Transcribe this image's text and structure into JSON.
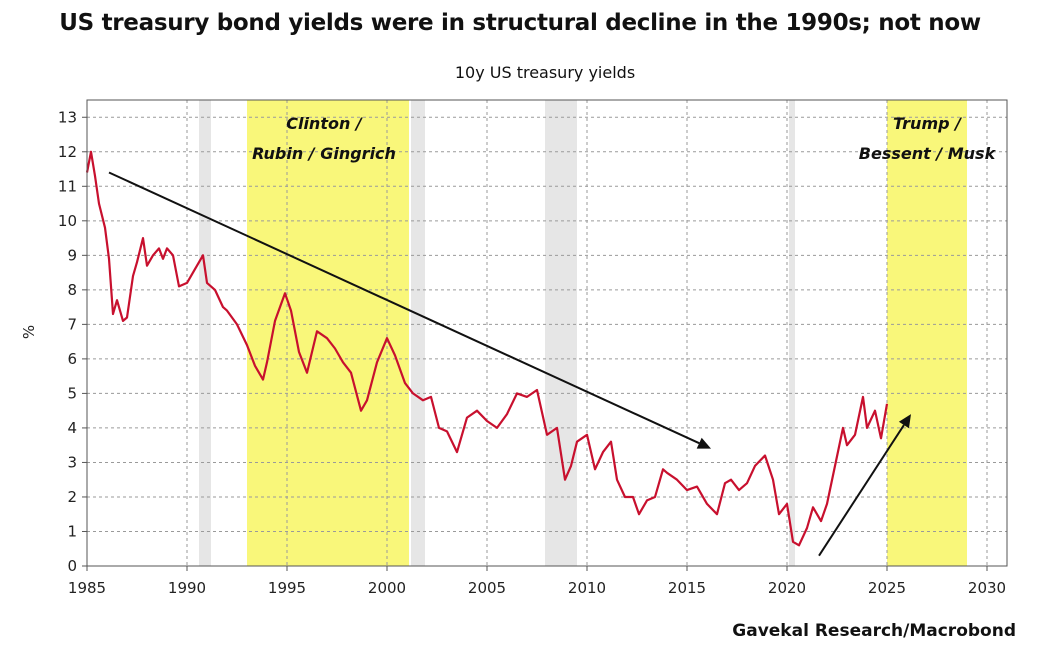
{
  "header": {
    "title": "US treasury bond yields were in structural decline in the 1990s; not now",
    "subtitle": "10y US treasury yields",
    "source": "Gavekal Research/Macrobond"
  },
  "colors": {
    "series": "#c8102e",
    "highlight": "#f9f77a",
    "recession": "#e6e6e6",
    "grid": "#9a9a9a",
    "arrow": "#111111"
  },
  "chart_data": {
    "type": "line",
    "ylabel": "%",
    "xlim": [
      1985,
      2031
    ],
    "ylim": [
      0,
      13.5
    ],
    "x_ticks": [
      1985,
      1990,
      1995,
      2000,
      2005,
      2010,
      2015,
      2020,
      2025,
      2030
    ],
    "y_ticks": [
      0,
      1,
      2,
      3,
      4,
      5,
      6,
      7,
      8,
      9,
      10,
      11,
      12,
      13
    ],
    "grid": true,
    "series": [
      {
        "x": [
          1985.0,
          1985.2,
          1985.4,
          1985.6,
          1985.9,
          1986.1,
          1986.3,
          1986.5,
          1986.8,
          1987.0,
          1987.3,
          1987.5,
          1987.8,
          1988.0,
          1988.3,
          1988.6,
          1988.8,
          1989.0,
          1989.3,
          1989.6,
          1990.0,
          1990.4,
          1990.8,
          1991.0,
          1991.4,
          1991.8,
          1992.0,
          1992.5,
          1993.0,
          1993.4,
          1993.8,
          1994.0,
          1994.4,
          1994.9,
          1995.2,
          1995.6,
          1996.0,
          1996.5,
          1997.0,
          1997.4,
          1997.8,
          1998.2,
          1998.7,
          1999.0,
          1999.5,
          2000.0,
          2000.4,
          2000.9,
          2001.3,
          2001.8,
          2002.2,
          2002.6,
          2003.0,
          2003.5,
          2004.0,
          2004.5,
          2005.0,
          2005.5,
          2006.0,
          2006.5,
          2007.0,
          2007.5,
          2008.0,
          2008.5,
          2008.9,
          2009.2,
          2009.5,
          2010.0,
          2010.4,
          2010.8,
          2011.2,
          2011.5,
          2011.9,
          2012.3,
          2012.6,
          2013.0,
          2013.4,
          2013.8,
          2014.0,
          2014.5,
          2015.0,
          2015.5,
          2016.0,
          2016.5,
          2016.9,
          2017.2,
          2017.6,
          2018.0,
          2018.4,
          2018.9,
          2019.3,
          2019.6,
          2020.0,
          2020.3,
          2020.6,
          2021.0,
          2021.3,
          2021.7,
          2022.0,
          2022.4,
          2022.8,
          2023.0,
          2023.4,
          2023.8,
          2024.0,
          2024.4,
          2024.7,
          2025.0
        ],
        "values": [
          11.4,
          12.0,
          11.3,
          10.5,
          9.8,
          8.9,
          7.3,
          7.7,
          7.1,
          7.2,
          8.4,
          8.8,
          9.5,
          8.7,
          9.0,
          9.2,
          8.9,
          9.2,
          9.0,
          8.1,
          8.2,
          8.6,
          9.0,
          8.2,
          8.0,
          7.5,
          7.4,
          7.0,
          6.4,
          5.8,
          5.4,
          5.9,
          7.1,
          7.9,
          7.4,
          6.2,
          5.6,
          6.8,
          6.6,
          6.3,
          5.9,
          5.6,
          4.5,
          4.8,
          5.9,
          6.6,
          6.1,
          5.3,
          5.0,
          4.8,
          4.9,
          4.0,
          3.9,
          3.3,
          4.3,
          4.5,
          4.2,
          4.0,
          4.4,
          5.0,
          4.9,
          5.1,
          3.8,
          4.0,
          2.5,
          2.9,
          3.6,
          3.8,
          2.8,
          3.3,
          3.6,
          2.5,
          2.0,
          2.0,
          1.5,
          1.9,
          2.0,
          2.8,
          2.7,
          2.5,
          2.2,
          2.3,
          1.8,
          1.5,
          2.4,
          2.5,
          2.2,
          2.4,
          2.9,
          3.2,
          2.5,
          1.5,
          1.8,
          0.7,
          0.6,
          1.1,
          1.7,
          1.3,
          1.8,
          2.9,
          4.0,
          3.5,
          3.8,
          4.9,
          4.0,
          4.5,
          3.7,
          4.7
        ]
      }
    ],
    "shaded_periods": [
      {
        "kind": "recession",
        "start": 1990.6,
        "end": 1991.2
      },
      {
        "kind": "highlight",
        "start": 1993.0,
        "end": 2001.1
      },
      {
        "kind": "recession",
        "start": 2001.2,
        "end": 2001.9
      },
      {
        "kind": "recession",
        "start": 2007.9,
        "end": 2009.5
      },
      {
        "kind": "recession",
        "start": 2020.1,
        "end": 2020.4
      },
      {
        "kind": "highlight",
        "start": 2025.0,
        "end": 2029.0
      }
    ],
    "annotations": [
      {
        "line1": "Clinton /",
        "line2": "Rubin / Gingrich"
      },
      {
        "line1": "Trump /",
        "line2": "Bessent / Musk"
      }
    ],
    "arrows": [
      {
        "from": [
          1986.1,
          11.4
        ],
        "to": [
          2016.2,
          3.4
        ]
      },
      {
        "from": [
          2021.6,
          0.3
        ],
        "to": [
          2026.2,
          4.4
        ]
      }
    ]
  }
}
